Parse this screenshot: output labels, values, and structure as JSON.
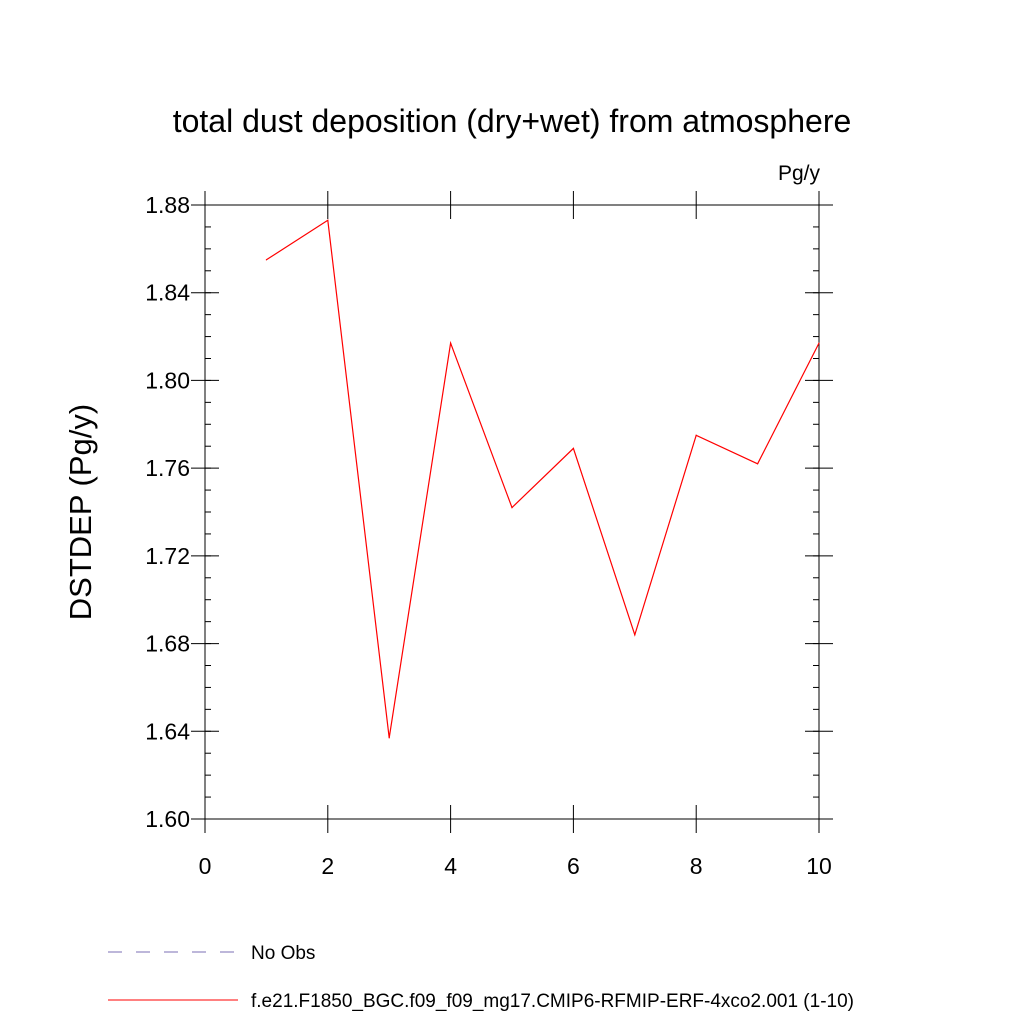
{
  "chart_data": {
    "type": "line",
    "title": "total dust deposition (dry+wet) from atmosphere",
    "units": "Pg/y",
    "ylabel": "DSTDEP  (Pg/y)",
    "xlabel": "",
    "xlim": [
      0,
      10
    ],
    "ylim": [
      1.6,
      1.88
    ],
    "xticks": [
      0,
      2,
      4,
      6,
      8,
      10
    ],
    "yticks": [
      1.6,
      1.64,
      1.68,
      1.72,
      1.76,
      1.8,
      1.84,
      1.88
    ],
    "ytick_labels": [
      "1.60",
      "1.64",
      "1.68",
      "1.72",
      "1.76",
      "1.80",
      "1.84",
      "1.88"
    ],
    "grid": false,
    "legend_position": "bottom",
    "series": [
      {
        "name": "f.e21.F1850_BGC.f09_f09_mg17.CMIP6-RFMIP-ERF-4xco2.001 (1-10)",
        "color": "#ff0000",
        "style": "solid",
        "x": [
          1,
          2,
          3,
          4,
          5,
          6,
          7,
          8,
          9,
          10
        ],
        "y": [
          1.855,
          1.873,
          1.637,
          1.817,
          1.742,
          1.769,
          1.684,
          1.775,
          1.762,
          1.817
        ]
      }
    ],
    "legend": [
      {
        "label": "No Obs",
        "color": "#7b6fb5",
        "style": "dashed"
      },
      {
        "label": "f.e21.F1850_BGC.f09_f09_mg17.CMIP6-RFMIP-ERF-4xco2.001 (1-10)",
        "color": "#ff0000",
        "style": "solid"
      }
    ]
  }
}
